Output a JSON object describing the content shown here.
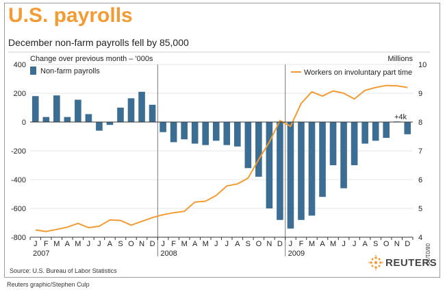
{
  "title": "U.S. payrolls",
  "subtitle": "December non-farm payrolls fell by 85,000",
  "source": "Source: U.S. Bureau of Labor Statistics",
  "credit": "Reuters graphic/Stephen Culp",
  "datestamp": "08/01/10",
  "logo_text": "REUTERS",
  "colors": {
    "title": "#f39b32",
    "bar": "#3c6e94",
    "line": "#f39b32",
    "axis": "#555555"
  },
  "chart_data": {
    "type": "bar+line",
    "left_axis_label": "Change over previous month – '000s",
    "right_axis_label": "Millions",
    "left_ylim": [
      -800,
      400
    ],
    "right_ylim": [
      4,
      10
    ],
    "left_ticks": [
      "400",
      "200",
      "0",
      "-200",
      "-400",
      "-600",
      "-800"
    ],
    "right_ticks": [
      "10",
      "9",
      "8",
      "7",
      "6",
      "5",
      "4"
    ],
    "months": [
      "J",
      "F",
      "M",
      "A",
      "M",
      "J",
      "J",
      "A",
      "S",
      "O",
      "N",
      "D",
      "J",
      "F",
      "M",
      "A",
      "M",
      "J",
      "J",
      "A",
      "S",
      "O",
      "N",
      "D",
      "J",
      "F",
      "M",
      "A",
      "M",
      "J",
      "J",
      "A",
      "S",
      "O",
      "N",
      "D"
    ],
    "years": [
      "2007",
      "2008",
      "2009"
    ],
    "annotation": "+4k",
    "series": [
      {
        "name": "Non-farm payrolls",
        "kind": "bar",
        "axis": "left",
        "values": [
          180,
          35,
          185,
          35,
          155,
          55,
          -60,
          -20,
          100,
          165,
          210,
          120,
          -70,
          -140,
          -120,
          -150,
          -160,
          -130,
          -160,
          -170,
          -320,
          -380,
          -600,
          -680,
          -740,
          -680,
          -650,
          -520,
          -300,
          -460,
          -300,
          -150,
          -130,
          -110,
          4,
          -85
        ]
      },
      {
        "name": "Workers on involuntary part time",
        "kind": "line",
        "axis": "right",
        "values": [
          4.25,
          4.2,
          4.27,
          4.35,
          4.48,
          4.33,
          4.38,
          4.6,
          4.58,
          4.42,
          4.55,
          4.68,
          4.78,
          4.85,
          4.9,
          5.22,
          5.25,
          5.45,
          5.78,
          5.85,
          6.05,
          6.7,
          7.3,
          8.05,
          7.85,
          8.65,
          9.05,
          8.9,
          9.08,
          9.0,
          8.8,
          9.1,
          9.2,
          9.27,
          9.26,
          9.2
        ]
      }
    ]
  }
}
